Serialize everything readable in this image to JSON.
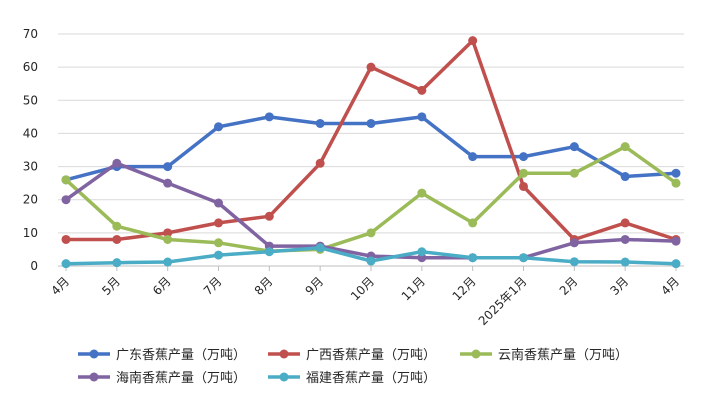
{
  "chart_data": {
    "type": "line",
    "title": "",
    "xlabel": "",
    "ylabel": "",
    "categories": [
      "4月",
      "5月",
      "6月",
      "7月",
      "8月",
      "9月",
      "10月",
      "11月",
      "12月",
      "2025年1月",
      "2月",
      "3月",
      "4月"
    ],
    "ylim": [
      0,
      70
    ],
    "yticks": [
      0,
      10,
      20,
      30,
      40,
      50,
      60,
      70
    ],
    "grid": true,
    "legend_position": "bottom",
    "series": [
      {
        "name": "广东香蕉产量（万吨）",
        "color": "#4472C4",
        "values": [
          26,
          30,
          30,
          42,
          45,
          43,
          43,
          45,
          33,
          33,
          36,
          27,
          28
        ]
      },
      {
        "name": "广西香蕉产量（万吨）",
        "color": "#C0504D",
        "values": [
          8,
          8,
          10,
          13,
          15,
          31,
          60,
          53,
          68,
          24,
          8,
          13,
          8
        ]
      },
      {
        "name": "云南香蕉产量（万吨）",
        "color": "#9BBB59",
        "values": [
          26,
          12,
          8,
          7,
          4.5,
          5,
          10,
          22,
          13,
          28,
          28,
          36,
          25
        ]
      },
      {
        "name": "海南香蕉产量（万吨）",
        "color": "#8064A2",
        "values": [
          20,
          31,
          25,
          19,
          6,
          6,
          3,
          2.5,
          2.5,
          2.5,
          7,
          8,
          7.5
        ]
      },
      {
        "name": "福建香蕉产量（万吨）",
        "color": "#4BACC6",
        "values": [
          0.7,
          1,
          1.2,
          3.3,
          4.3,
          5.5,
          1.5,
          4.3,
          2.5,
          2.5,
          1.3,
          1.2,
          0.7
        ]
      }
    ]
  }
}
